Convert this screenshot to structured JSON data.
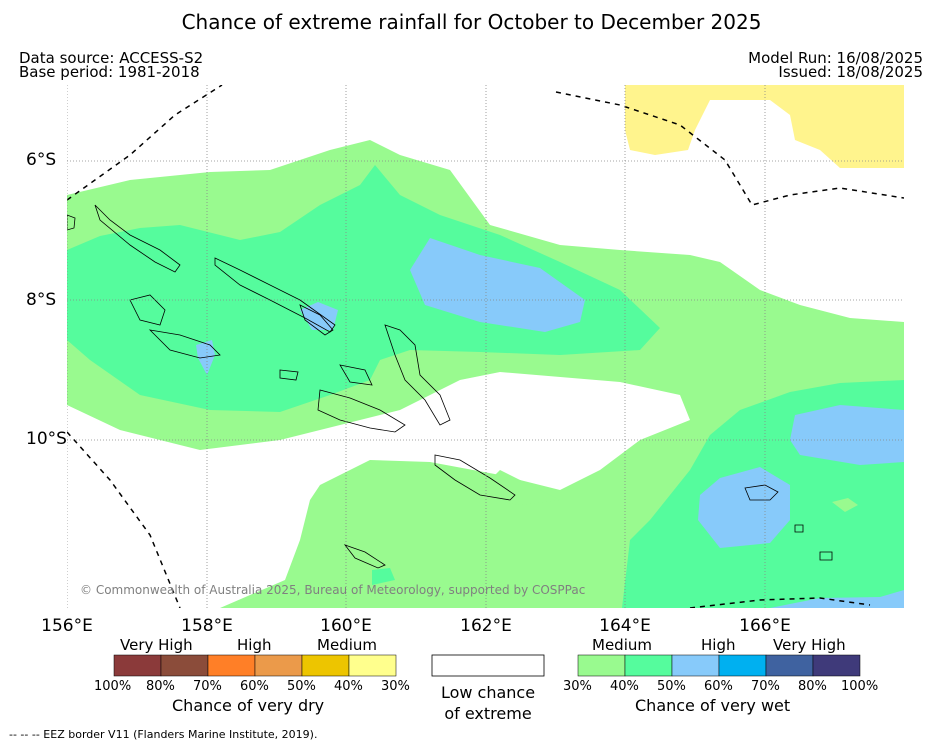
{
  "title": "Chance of extreme rainfall for October to December 2025",
  "header": {
    "data_source": "Data source: ACCESS-S2",
    "base_period": "Base period: 1981-2018",
    "model_run": "Model Run: 16/08/2025",
    "issued": "Issued: 18/08/2025"
  },
  "map": {
    "lat_labels": [
      "6°S",
      "8°S",
      "10°S"
    ],
    "lon_labels": [
      "156°E",
      "158°E",
      "160°E",
      "162°E",
      "164°E",
      "166°E"
    ],
    "copyright": "© Commonwealth of Australia 2025, Bureau of Meteorology, supported by COSPPac"
  },
  "legend": {
    "dry": {
      "category_labels": [
        "Very High",
        "High",
        "Medium"
      ],
      "colors": [
        "#8b3a3a",
        "#8b4c3a",
        "#ff7f27",
        "#eb9a4a",
        "#edc500",
        "#ffff8d"
      ],
      "ticks": [
        "100%",
        "80%",
        "70%",
        "60%",
        "50%",
        "40%",
        "30%"
      ],
      "caption": "Chance of very dry"
    },
    "low": {
      "caption_line1": "Low chance",
      "caption_line2": "of extreme"
    },
    "wet": {
      "category_labels": [
        "Medium",
        "High",
        "Very High"
      ],
      "colors": [
        "#99fa8f",
        "#55fc9d",
        "#87cafa",
        "#00b0f0",
        "#3f62a0",
        "#3f3a7a"
      ],
      "ticks": [
        "30%",
        "40%",
        "50%",
        "60%",
        "70%",
        "80%",
        "100%"
      ],
      "caption": "Chance of very wet"
    }
  },
  "footer": "--  --  -- EEZ border V11 (Flanders Marine Institute, 2019)."
}
